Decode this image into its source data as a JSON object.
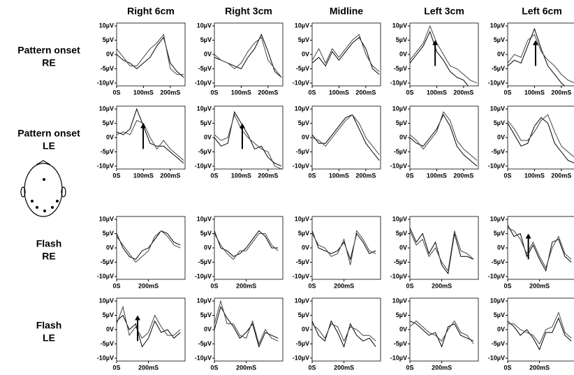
{
  "column_titles": [
    "Right 6cm",
    "Right 3cm",
    "Midline",
    "Left 3cm",
    "Left 6cm"
  ],
  "row_labels": [
    [
      "Pattern onset",
      "RE"
    ],
    [
      "Pattern onset",
      "LE"
    ],
    [
      "Flash",
      "RE"
    ],
    [
      "Flash",
      "LE"
    ]
  ],
  "y_axis": {
    "ylim": [
      -11,
      11
    ],
    "yticks": [
      {
        "value": 10,
        "label": "10µV"
      },
      {
        "value": 5,
        "label": "5µV"
      },
      {
        "value": 0,
        "label": "0V"
      },
      {
        "value": -5,
        "label": "-5µV"
      },
      {
        "value": -10,
        "label": "-10µV"
      }
    ]
  },
  "x_axes": [
    {
      "xlim": [
        0,
        255
      ],
      "xticks": [
        {
          "value": 0,
          "label": "0S"
        },
        {
          "value": 100,
          "label": "100mS"
        },
        {
          "value": 200,
          "label": "200mS"
        }
      ],
      "x": [
        0,
        25,
        50,
        75,
        100,
        125,
        150,
        175,
        200,
        225,
        250
      ]
    },
    {
      "xlim": [
        0,
        430
      ],
      "xticks": [
        {
          "value": 0,
          "label": "0S"
        },
        {
          "value": 200,
          "label": "200mS"
        }
      ],
      "x": [
        0,
        40,
        80,
        120,
        160,
        200,
        240,
        280,
        320,
        360,
        400
      ]
    }
  ],
  "chart_data": [
    {
      "type": "line",
      "series": [
        {
          "color": "#000",
          "values": [
            0,
            -2,
            -3,
            -5,
            -3,
            -1,
            3,
            6,
            -3,
            -6,
            -8
          ]
        },
        {
          "color": "#444",
          "values": [
            2,
            -1,
            -4,
            -4,
            -1,
            2,
            4,
            7,
            -5,
            -7,
            -7
          ]
        }
      ]
    },
    {
      "type": "line",
      "series": [
        {
          "color": "#000",
          "values": [
            -1,
            -2,
            -3,
            -4,
            -5,
            -1,
            2,
            7,
            1,
            -6,
            -8
          ]
        },
        {
          "color": "#444",
          "values": [
            0,
            -2,
            -3,
            -5,
            -3,
            1,
            4,
            6,
            -2,
            -5,
            -8
          ]
        }
      ]
    },
    {
      "type": "line",
      "series": [
        {
          "color": "#000",
          "values": [
            -3,
            -1,
            -4,
            1,
            -2,
            1,
            4,
            6,
            2,
            -5,
            -7
          ]
        },
        {
          "color": "#444",
          "values": [
            -2,
            2,
            -3,
            2,
            -1,
            2,
            5,
            7,
            0,
            -4,
            -6
          ]
        }
      ]
    },
    {
      "type": "line",
      "arrow_x": 94,
      "series": [
        {
          "color": "#000",
          "values": [
            -3,
            0,
            3,
            8,
            1,
            -2,
            -6,
            -8,
            -9,
            -12,
            -12
          ]
        },
        {
          "color": "#444",
          "values": [
            -2,
            1,
            4,
            10,
            4,
            0,
            -4,
            -5,
            -7,
            -9,
            -10
          ]
        }
      ]
    },
    {
      "type": "line",
      "arrow_x": 104,
      "series": [
        {
          "color": "#000",
          "values": [
            -4,
            -2,
            -3,
            3,
            9,
            2,
            -4,
            -7,
            -10,
            -12,
            -12
          ]
        },
        {
          "color": "#444",
          "values": [
            -3,
            0,
            -1,
            5,
            7,
            1,
            -2,
            -4,
            -7,
            -9,
            -10
          ]
        }
      ]
    },
    {
      "type": "line",
      "arrow_x": 99,
      "series": [
        {
          "color": "#000",
          "values": [
            2,
            1,
            3,
            10,
            4,
            -2,
            -3,
            -3,
            -5,
            -7,
            -9
          ]
        },
        {
          "color": "#444",
          "values": [
            1,
            2,
            1,
            6,
            5,
            0,
            -4,
            -1,
            -4,
            -6,
            -8
          ]
        }
      ]
    },
    {
      "type": "line",
      "arrow_x": 104,
      "series": [
        {
          "color": "#000",
          "values": [
            0,
            -3,
            -2,
            9,
            5,
            1,
            -4,
            -3,
            -7,
            -9,
            -10
          ]
        },
        {
          "color": "#444",
          "values": [
            1,
            -1,
            0,
            8,
            3,
            0,
            -2,
            -4,
            -5,
            -10,
            -11
          ]
        }
      ]
    },
    {
      "type": "line",
      "series": [
        {
          "color": "#000",
          "values": [
            1,
            -2,
            -2,
            1,
            4,
            7,
            8,
            3,
            -2,
            -5,
            -8
          ]
        },
        {
          "color": "#444",
          "values": [
            0,
            -1,
            -3,
            0,
            3,
            6,
            8,
            5,
            0,
            -3,
            -6
          ]
        }
      ]
    },
    {
      "type": "line",
      "series": [
        {
          "color": "#000",
          "values": [
            0,
            -2,
            -3,
            0,
            3,
            8,
            4,
            -3,
            -6,
            -8,
            -10
          ]
        },
        {
          "color": "#444",
          "values": [
            1,
            -1,
            -4,
            -1,
            2,
            9,
            6,
            -1,
            -4,
            -6,
            -8
          ]
        }
      ]
    },
    {
      "type": "line",
      "series": [
        {
          "color": "#000",
          "values": [
            5,
            1,
            -3,
            -2,
            4,
            7,
            5,
            -2,
            -5,
            -8,
            -9
          ]
        },
        {
          "color": "#444",
          "values": [
            6,
            3,
            -1,
            -1,
            2,
            6,
            8,
            2,
            -3,
            -5,
            -7
          ]
        }
      ]
    },
    {
      "type": "line",
      "series": [
        {
          "color": "#000",
          "values": [
            5,
            0,
            -3,
            -4,
            -1,
            0,
            3,
            6,
            5,
            2,
            1
          ]
        },
        {
          "color": "#444",
          "values": [
            4,
            1,
            -2,
            -5,
            -3,
            -1,
            4,
            6,
            4,
            1,
            0
          ]
        }
      ]
    },
    {
      "type": "line",
      "series": [
        {
          "color": "#000",
          "values": [
            6,
            0,
            -1,
            -3,
            -2,
            0,
            3,
            6,
            4,
            0,
            0
          ]
        },
        {
          "color": "#444",
          "values": [
            5,
            1,
            -2,
            -4,
            -1,
            -1,
            2,
            5,
            5,
            1,
            -1
          ]
        }
      ]
    },
    {
      "type": "line",
      "series": [
        {
          "color": "#000",
          "values": [
            6,
            0,
            -1,
            -2,
            -1,
            2,
            -4,
            5,
            2,
            -2,
            -1
          ]
        },
        {
          "color": "#444",
          "values": [
            5,
            1,
            0,
            -3,
            -2,
            3,
            -6,
            6,
            3,
            -1,
            -2
          ]
        }
      ]
    },
    {
      "type": "line",
      "series": [
        {
          "color": "#000",
          "values": [
            7,
            2,
            5,
            -2,
            2,
            -6,
            -9,
            5,
            -3,
            -3,
            -4
          ]
        },
        {
          "color": "#444",
          "values": [
            6,
            1,
            3,
            -3,
            0,
            -5,
            -8,
            6,
            -1,
            -2,
            -4
          ]
        }
      ]
    },
    {
      "type": "line",
      "arrow_x": 130,
      "series": [
        {
          "color": "#000",
          "values": [
            8,
            4,
            5,
            -3,
            1,
            -4,
            -8,
            2,
            3,
            -3,
            -5
          ]
        },
        {
          "color": "#444",
          "values": [
            7,
            6,
            3,
            -2,
            2,
            -3,
            -7,
            0,
            4,
            -2,
            -4
          ]
        }
      ]
    },
    {
      "type": "line",
      "arrow_x": 132,
      "series": [
        {
          "color": "#000",
          "values": [
            3,
            5,
            0,
            2,
            -6,
            -3,
            3,
            -1,
            0,
            -3,
            -1
          ]
        },
        {
          "color": "#444",
          "values": [
            2,
            8,
            -2,
            1,
            -3,
            -1,
            5,
            1,
            -2,
            -2,
            0
          ]
        }
      ]
    },
    {
      "type": "line",
      "series": [
        {
          "color": "#000",
          "values": [
            0,
            8,
            4,
            1,
            -3,
            -1,
            2,
            -6,
            -1,
            -2,
            -3
          ]
        },
        {
          "color": "#444",
          "values": [
            2,
            10,
            2,
            2,
            -2,
            -3,
            3,
            -5,
            0,
            -3,
            -4
          ]
        }
      ]
    },
    {
      "type": "line",
      "series": [
        {
          "color": "#000",
          "values": [
            3,
            -2,
            -4,
            3,
            -1,
            -6,
            2,
            -2,
            -4,
            -3,
            -6
          ]
        },
        {
          "color": "#444",
          "values": [
            2,
            0,
            -3,
            2,
            1,
            -4,
            1,
            0,
            -2,
            -2,
            -4
          ]
        }
      ]
    },
    {
      "type": "line",
      "series": [
        {
          "color": "#000",
          "values": [
            3,
            2,
            0,
            -2,
            -1,
            -6,
            1,
            2,
            -2,
            -3,
            -4
          ]
        },
        {
          "color": "#444",
          "values": [
            1,
            3,
            1,
            -1,
            -2,
            -4,
            0,
            3,
            -1,
            -2,
            -5
          ]
        }
      ]
    },
    {
      "type": "line",
      "series": [
        {
          "color": "#000",
          "values": [
            3,
            1,
            -2,
            0,
            -3,
            -7,
            -1,
            -1,
            4,
            -2,
            -4
          ]
        },
        {
          "color": "#444",
          "values": [
            2,
            2,
            0,
            -1,
            -2,
            -5,
            0,
            1,
            6,
            -1,
            -3
          ]
        }
      ]
    }
  ]
}
